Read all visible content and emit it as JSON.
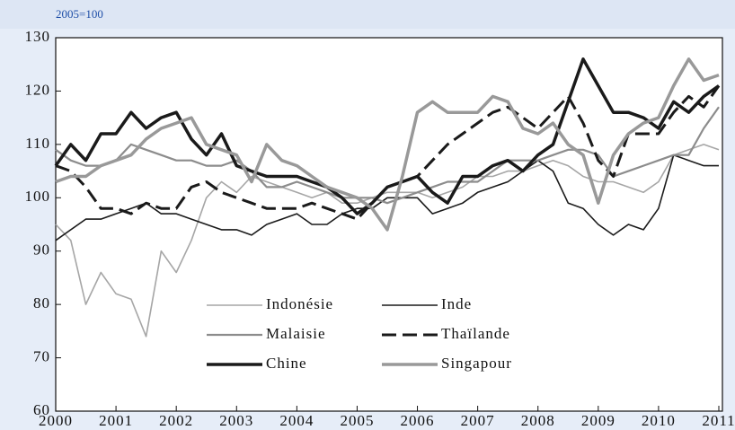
{
  "chart_data": {
    "type": "line",
    "subtitle": "2005=100",
    "x": [
      2000,
      2000.25,
      2000.5,
      2000.75,
      2001,
      2001.25,
      2001.5,
      2001.75,
      2002,
      2002.25,
      2002.5,
      2002.75,
      2003,
      2003.25,
      2003.5,
      2003.75,
      2004,
      2004.25,
      2004.5,
      2004.75,
      2005,
      2005.25,
      2005.5,
      2005.75,
      2006,
      2006.25,
      2006.5,
      2006.75,
      2007,
      2007.25,
      2007.5,
      2007.75,
      2008,
      2008.25,
      2008.5,
      2008.75,
      2009,
      2009.25,
      2009.5,
      2009.75,
      2010,
      2010.25,
      2010.5,
      2010.75,
      2011
    ],
    "series": [
      {
        "name": "Indonésie",
        "color": "#a6a6a6",
        "linewidth": 1.6,
        "style": "solid",
        "values": [
          95,
          92,
          80,
          86,
          82,
          81,
          74,
          90,
          86,
          92,
          100,
          103,
          101,
          104,
          103,
          102,
          101,
          100,
          101,
          99,
          99,
          100,
          101,
          101,
          101,
          100,
          101,
          102,
          104,
          104,
          105,
          105,
          106,
          107,
          106,
          104,
          103,
          103,
          102,
          101,
          103,
          108,
          109,
          110,
          109
        ]
      },
      {
        "name": "Inde",
        "color": "#1a1a1a",
        "linewidth": 1.6,
        "style": "solid",
        "values": [
          92,
          94,
          96,
          96,
          97,
          98,
          99,
          97,
          97,
          96,
          95,
          94,
          94,
          93,
          95,
          96,
          97,
          95,
          95,
          97,
          98,
          98,
          100,
          100,
          100,
          97,
          98,
          99,
          101,
          102,
          103,
          105,
          107,
          105,
          99,
          98,
          95,
          93,
          95,
          94,
          98,
          108,
          107,
          106,
          106
        ]
      },
      {
        "name": "Malaisie",
        "color": "#8c8c8c",
        "linewidth": 2.2,
        "style": "solid",
        "values": [
          109,
          107,
          106,
          106,
          107,
          110,
          109,
          108,
          107,
          107,
          106,
          106,
          107,
          105,
          102,
          102,
          103,
          102,
          101,
          100,
          100,
          100,
          99,
          100,
          101,
          102,
          103,
          103,
          103,
          105,
          107,
          107,
          107,
          108,
          109,
          109,
          108,
          104,
          105,
          106,
          107,
          108,
          108,
          113,
          117
        ]
      },
      {
        "name": "Thaïlande",
        "color": "#1a1a1a",
        "linewidth": 3,
        "style": "dashed",
        "values": [
          106,
          105,
          102,
          98,
          98,
          97,
          99,
          98,
          98,
          102,
          103,
          101,
          100,
          99,
          98,
          98,
          98,
          99,
          98,
          97,
          96,
          99,
          102,
          103,
          104,
          107,
          110,
          112,
          114,
          116,
          117,
          115,
          113,
          116,
          119,
          114,
          107,
          104,
          112,
          112,
          112,
          116,
          119,
          117,
          121
        ]
      },
      {
        "name": "Chine",
        "color": "#1a1a1a",
        "linewidth": 3.5,
        "style": "solid",
        "values": [
          106,
          110,
          107,
          112,
          112,
          116,
          113,
          115,
          116,
          111,
          108,
          112,
          106,
          105,
          104,
          104,
          104,
          103,
          102,
          100,
          97,
          99,
          102,
          103,
          104,
          101,
          99,
          104,
          104,
          106,
          107,
          105,
          108,
          110,
          118,
          126,
          121,
          116,
          116,
          115,
          113,
          118,
          116,
          119,
          121
        ]
      },
      {
        "name": "Singapour",
        "color": "#999999",
        "linewidth": 3.5,
        "style": "solid",
        "values": [
          103,
          104,
          104,
          106,
          107,
          108,
          111,
          113,
          114,
          115,
          110,
          109,
          108,
          103,
          110,
          107,
          106,
          104,
          102,
          101,
          100,
          98,
          94,
          104,
          116,
          118,
          116,
          116,
          116,
          119,
          118,
          113,
          112,
          114,
          110,
          108,
          99,
          108,
          112,
          114,
          115,
          121,
          126,
          122,
          123
        ]
      }
    ],
    "xlim": [
      2000,
      2011
    ],
    "xticks": [
      2000,
      2001,
      2002,
      2003,
      2004,
      2005,
      2006,
      2007,
      2008,
      2009,
      2010,
      2011
    ],
    "ylim": [
      60,
      130
    ],
    "yticks": [
      60,
      70,
      80,
      90,
      100,
      110,
      120,
      130
    ]
  }
}
